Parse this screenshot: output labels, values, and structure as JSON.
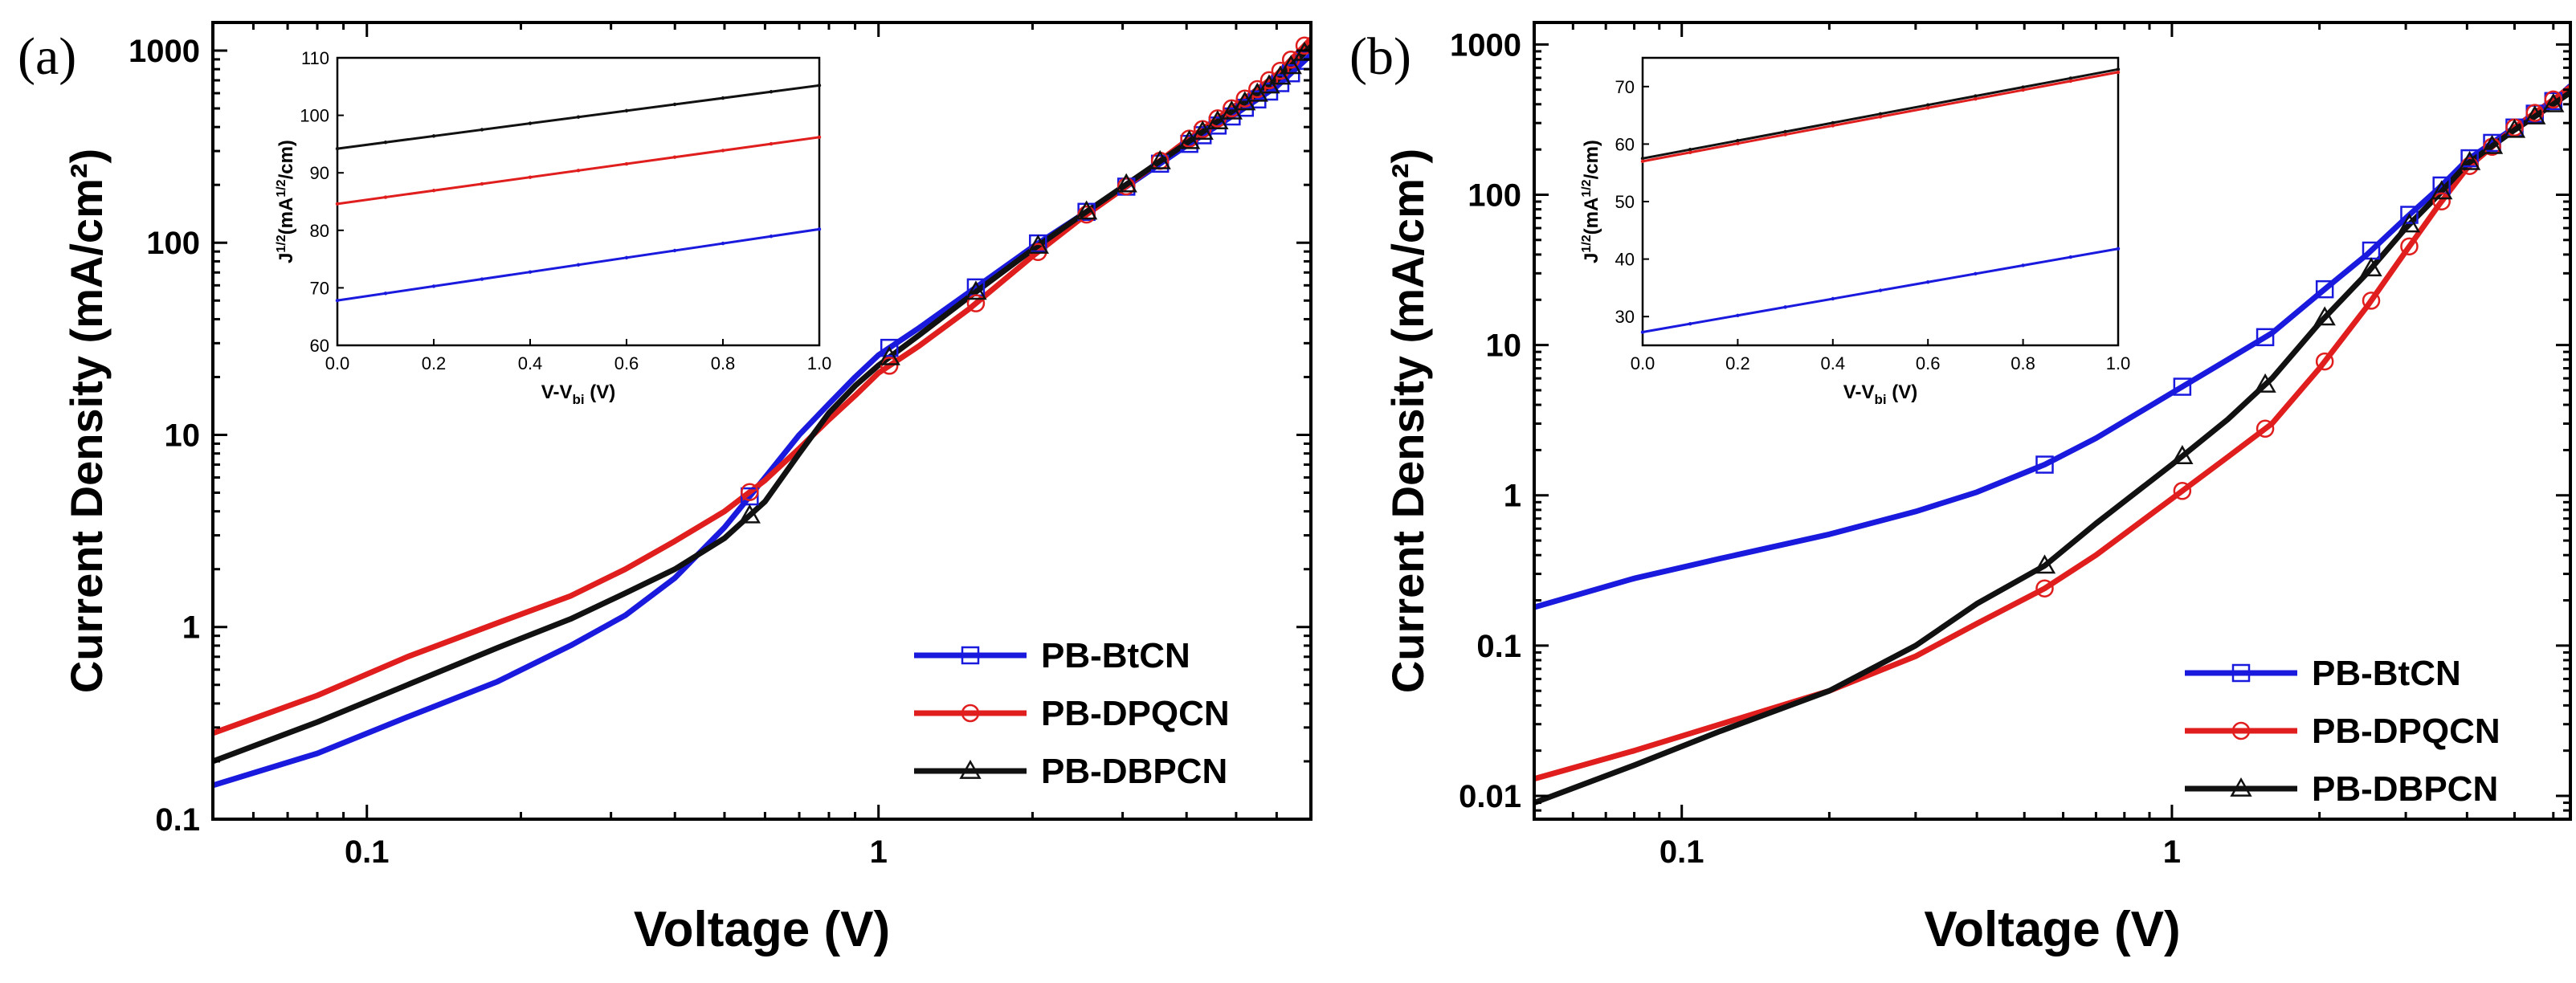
{
  "chart_data": [
    {
      "panel_label": "(a)",
      "type": "line",
      "xlabel": "Voltage (V)",
      "ylabel": "Current Density (mA/cm²)",
      "xscale": "log",
      "yscale": "log",
      "xlim": [
        0.05,
        7
      ],
      "ylim": [
        0.1,
        1400
      ],
      "x_ticks": [
        {
          "value": 0.1,
          "label": "0.1"
        },
        {
          "value": 1,
          "label": "1"
        }
      ],
      "y_ticks": [
        {
          "value": 0.1,
          "label": "0.1"
        },
        {
          "value": 1,
          "label": "1"
        },
        {
          "value": 10,
          "label": "10"
        },
        {
          "value": 100,
          "label": "100"
        },
        {
          "value": 1000,
          "label": "1000"
        }
      ],
      "legend_position": "bottom-right",
      "series": [
        {
          "name": "PB-BtCN",
          "color": "#1a1adf",
          "marker": "square",
          "points": [
            [
              0.05,
              0.15
            ],
            [
              0.08,
              0.22
            ],
            [
              0.12,
              0.34
            ],
            [
              0.18,
              0.52
            ],
            [
              0.25,
              0.8
            ],
            [
              0.32,
              1.15
            ],
            [
              0.4,
              1.8
            ],
            [
              0.5,
              3.3
            ],
            [
              0.6,
              6
            ],
            [
              0.7,
              10
            ],
            [
              0.8,
              14.5
            ],
            [
              0.9,
              20
            ],
            [
              1.0,
              26
            ],
            [
              1.2,
              36
            ],
            [
              1.5,
              55
            ],
            [
              2.0,
              95
            ],
            [
              2.5,
              140
            ],
            [
              3.0,
              190
            ],
            [
              4.0,
              320
            ],
            [
              5.0,
              470
            ],
            [
              6.0,
              650
            ],
            [
              7.0,
              950
            ]
          ],
          "marker_x": [
            0.56,
            1.05,
            1.55,
            2.05,
            2.55,
            3.05,
            3.55,
            4.05,
            4.3,
            4.6,
            4.9,
            5.2,
            5.5,
            5.8,
            6.1,
            6.4,
            6.8
          ]
        },
        {
          "name": "PB-DPQCN",
          "color": "#e01e1e",
          "marker": "circle",
          "points": [
            [
              0.05,
              0.28
            ],
            [
              0.08,
              0.44
            ],
            [
              0.12,
              0.7
            ],
            [
              0.18,
              1.05
            ],
            [
              0.25,
              1.45
            ],
            [
              0.32,
              2.0
            ],
            [
              0.4,
              2.8
            ],
            [
              0.5,
              4.0
            ],
            [
              0.6,
              5.8
            ],
            [
              0.7,
              8.5
            ],
            [
              0.8,
              12
            ],
            [
              0.9,
              16
            ],
            [
              1.0,
              21
            ],
            [
              1.2,
              29
            ],
            [
              1.5,
              45
            ],
            [
              2.0,
              85
            ],
            [
              2.5,
              135
            ],
            [
              3.0,
              190
            ],
            [
              4.0,
              340
            ],
            [
              5.0,
              520
            ],
            [
              6.0,
              750
            ],
            [
              7.0,
              1150
            ]
          ],
          "marker_x": [
            0.56,
            1.05,
            1.55,
            2.05,
            2.55,
            3.05,
            3.55,
            4.05,
            4.3,
            4.6,
            4.9,
            5.2,
            5.5,
            5.8,
            6.1,
            6.4,
            6.8
          ]
        },
        {
          "name": "PB-DBPCN",
          "color": "#111111",
          "marker": "triangle",
          "points": [
            [
              0.05,
              0.2
            ],
            [
              0.08,
              0.32
            ],
            [
              0.12,
              0.5
            ],
            [
              0.18,
              0.78
            ],
            [
              0.25,
              1.1
            ],
            [
              0.32,
              1.5
            ],
            [
              0.4,
              2.0
            ],
            [
              0.5,
              2.9
            ],
            [
              0.6,
              4.5
            ],
            [
              0.7,
              8
            ],
            [
              0.8,
              13
            ],
            [
              0.9,
              18
            ],
            [
              1.0,
              23
            ],
            [
              1.2,
              33
            ],
            [
              1.5,
              52
            ],
            [
              2.0,
              92
            ],
            [
              2.5,
              140
            ],
            [
              3.0,
              195
            ],
            [
              4.0,
              330
            ],
            [
              5.0,
              500
            ],
            [
              6.0,
              700
            ],
            [
              7.0,
              1050
            ]
          ],
          "marker_x": [
            0.56,
            1.05,
            1.55,
            2.05,
            2.55,
            3.05,
            3.55,
            4.05,
            4.3,
            4.6,
            4.9,
            5.2,
            5.5,
            5.8,
            6.1,
            6.4,
            6.8
          ]
        }
      ],
      "inset": {
        "xlabel_main": "V-V",
        "xlabel_sub": "bi",
        "xlabel_tail": " (V)",
        "ylabel_main": "J",
        "ylabel_sup": "1/2",
        "ylabel_mid": "(mA",
        "ylabel_sup2": "1/2",
        "ylabel_tail": "/cm)",
        "xlim": [
          0,
          1
        ],
        "ylim": [
          60,
          110
        ],
        "x_ticks": [
          "0.0",
          "0.2",
          "0.4",
          "0.6",
          "0.8",
          "1.0"
        ],
        "y_ticks": [
          "60",
          "70",
          "80",
          "90",
          "100",
          "110"
        ],
        "lines": [
          {
            "color": "#111111",
            "y0": 94.2,
            "y1": 105.2
          },
          {
            "color": "#e01e1e",
            "y0": 84.6,
            "y1": 96.2
          },
          {
            "color": "#1a1adf",
            "y0": 67.8,
            "y1": 80.2
          }
        ]
      }
    },
    {
      "panel_label": "(b)",
      "type": "line",
      "xlabel": "Voltage (V)",
      "ylabel": "Current Density (mA/cm²)",
      "xscale": "log",
      "yscale": "log",
      "xlim": [
        0.05,
        6.5
      ],
      "ylim": [
        0.007,
        1400
      ],
      "x_ticks": [
        {
          "value": 0.1,
          "label": "0.1"
        },
        {
          "value": 1,
          "label": "1"
        }
      ],
      "y_ticks": [
        {
          "value": 0.01,
          "label": "0.01"
        },
        {
          "value": 0.1,
          "label": "0.1"
        },
        {
          "value": 1,
          "label": "1"
        },
        {
          "value": 10,
          "label": "10"
        },
        {
          "value": 100,
          "label": "100"
        },
        {
          "value": 1000,
          "label": "1000"
        }
      ],
      "legend_position": "bottom-right",
      "series": [
        {
          "name": "PB-BtCN",
          "color": "#1a1adf",
          "marker": "square",
          "points": [
            [
              0.05,
              0.18
            ],
            [
              0.08,
              0.28
            ],
            [
              0.12,
              0.38
            ],
            [
              0.2,
              0.55
            ],
            [
              0.3,
              0.78
            ],
            [
              0.4,
              1.05
            ],
            [
              0.55,
              1.6
            ],
            [
              0.7,
              2.4
            ],
            [
              1.0,
              4.8
            ],
            [
              1.3,
              8
            ],
            [
              1.6,
              12
            ],
            [
              2.0,
              22
            ],
            [
              2.5,
              40
            ],
            [
              3.0,
              70
            ],
            [
              3.5,
              110
            ],
            [
              4.0,
              170
            ],
            [
              5.0,
              280
            ],
            [
              6.0,
              420
            ],
            [
              6.5,
              530
            ]
          ],
          "marker_x": [
            0.55,
            1.05,
            1.55,
            2.05,
            2.55,
            3.05,
            3.55,
            4.05,
            4.5,
            5.0,
            5.5,
            6.0
          ]
        },
        {
          "name": "PB-DPQCN",
          "color": "#e01e1e",
          "marker": "circle",
          "points": [
            [
              0.05,
              0.013
            ],
            [
              0.08,
              0.02
            ],
            [
              0.12,
              0.03
            ],
            [
              0.2,
              0.05
            ],
            [
              0.3,
              0.085
            ],
            [
              0.4,
              0.14
            ],
            [
              0.55,
              0.24
            ],
            [
              0.7,
              0.4
            ],
            [
              1.0,
              0.95
            ],
            [
              1.3,
              1.8
            ],
            [
              1.6,
              3.0
            ],
            [
              2.0,
              7
            ],
            [
              2.5,
              18
            ],
            [
              3.0,
              42
            ],
            [
              3.5,
              85
            ],
            [
              4.0,
              150
            ],
            [
              5.0,
              280
            ],
            [
              6.0,
              430
            ],
            [
              6.5,
              520
            ]
          ],
          "marker_x": [
            0.55,
            1.05,
            1.55,
            2.05,
            2.55,
            3.05,
            3.55,
            4.05,
            4.5,
            5.0,
            5.5,
            6.0
          ]
        },
        {
          "name": "PB-DBPCN",
          "color": "#111111",
          "marker": "triangle",
          "points": [
            [
              0.05,
              0.009
            ],
            [
              0.08,
              0.016
            ],
            [
              0.12,
              0.027
            ],
            [
              0.2,
              0.05
            ],
            [
              0.3,
              0.1
            ],
            [
              0.4,
              0.19
            ],
            [
              0.55,
              0.34
            ],
            [
              0.7,
              0.65
            ],
            [
              1.0,
              1.6
            ],
            [
              1.3,
              3.2
            ],
            [
              1.6,
              6
            ],
            [
              2.0,
              14
            ],
            [
              2.5,
              30
            ],
            [
              3.0,
              60
            ],
            [
              3.5,
              100
            ],
            [
              4.0,
              160
            ],
            [
              5.0,
              270
            ],
            [
              6.0,
              400
            ],
            [
              6.5,
              480
            ]
          ],
          "marker_x": [
            0.55,
            1.05,
            1.55,
            2.05,
            2.55,
            3.05,
            3.55,
            4.05,
            4.5,
            5.0,
            5.5,
            6.0
          ]
        }
      ],
      "inset": {
        "xlabel_main": "V-V",
        "xlabel_sub": "bi",
        "xlabel_tail": " (V)",
        "ylabel_main": "J",
        "ylabel_sup": "1/2",
        "ylabel_mid": "(mA",
        "ylabel_sup2": "1/2",
        "ylabel_tail": "/cm)",
        "xlim": [
          0,
          1
        ],
        "ylim": [
          25,
          75
        ],
        "x_ticks": [
          "0.0",
          "0.2",
          "0.4",
          "0.6",
          "0.8",
          "1.0"
        ],
        "y_ticks": [
          "30",
          "40",
          "50",
          "60",
          "70"
        ],
        "y_tick_values": [
          30,
          40,
          50,
          60,
          70
        ],
        "lines": [
          {
            "color": "#111111",
            "y0": 57.5,
            "y1": 73.0
          },
          {
            "color": "#e01e1e",
            "y0": 57.0,
            "y1": 72.5
          },
          {
            "color": "#1a1adf",
            "y0": 27.3,
            "y1": 41.8
          }
        ]
      }
    }
  ]
}
